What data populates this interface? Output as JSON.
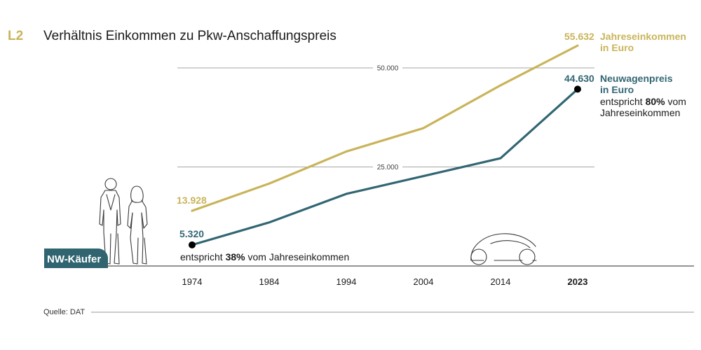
{
  "figure_label": "L2",
  "source": "Quelle: DAT",
  "badge_label": "NW-Käufer",
  "colors": {
    "gold": "#c9b45a",
    "teal": "#326673",
    "axis": "#555555",
    "grid": "#888888",
    "badge": "#2f6470"
  },
  "chart_data": {
    "type": "line",
    "title": "Verhältnis Einkommen zu Pkw-Anschaffungspreis",
    "xlabel": "",
    "ylabel": "",
    "x": [
      1974,
      1984,
      1994,
      2004,
      2014,
      2023
    ],
    "x_tick_labels": [
      "1974",
      "1984",
      "1994",
      "2004",
      "2014",
      "2023"
    ],
    "ylim": [
      0,
      60000
    ],
    "gridlines": [
      {
        "value": 25000,
        "label": "25.000"
      },
      {
        "value": 50000,
        "label": "50.000"
      }
    ],
    "series": [
      {
        "name": "Jahreseinkommen in Euro",
        "name_lines": [
          "Jahreseinkommen",
          "in Euro"
        ],
        "color": "gold",
        "values": [
          13928,
          20800,
          28900,
          34800,
          45600,
          55632
        ],
        "start_label": "13.928",
        "end_label": "55.632"
      },
      {
        "name": "Neuwagenpreis in Euro",
        "name_lines": [
          "Neuwagenpreis",
          "in Euro"
        ],
        "color": "teal",
        "values": [
          5320,
          11000,
          18200,
          22700,
          27200,
          44630
        ],
        "start_label": "5.320",
        "end_label": "44.630"
      }
    ],
    "annotations": {
      "start": {
        "pre": "entspricht ",
        "bold": "38%",
        "post": " vom Jahreseinkommen"
      },
      "end": {
        "line1_pre": "entspricht ",
        "line1_bold": "80%",
        "line1_post": " vom",
        "line2": "Jahreseinkommen"
      }
    }
  }
}
